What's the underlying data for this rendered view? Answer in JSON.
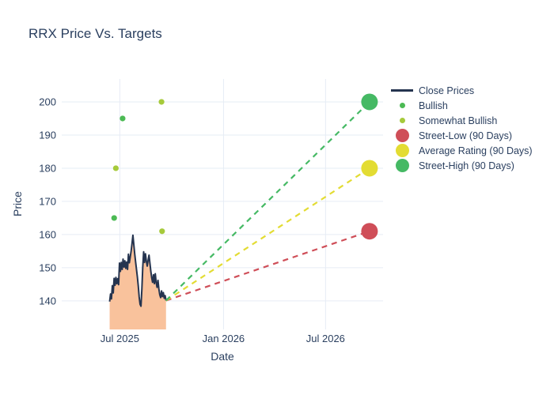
{
  "colors": {
    "text": "#2a3f5f",
    "grid": "#e6ecf5",
    "line": "#25344f",
    "fill": "#f9c29c",
    "bullish": "#4cba54",
    "somewhat": "#a6ca3b",
    "low": "#cf4e58",
    "avg": "#e3dc33",
    "high": "#45b964"
  },
  "legend": {
    "items": [
      {
        "label": "Close Prices",
        "color_key": "line",
        "swatch": "line"
      },
      {
        "label": "Bullish",
        "color_key": "bullish",
        "swatch": "dot-sm"
      },
      {
        "label": "Somewhat Bullish",
        "color_key": "somewhat",
        "swatch": "dot-sm"
      },
      {
        "label": "Street-Low (90 Days)",
        "color_key": "low",
        "swatch": "dot-lg"
      },
      {
        "label": "Average Rating (90 Days)",
        "color_key": "avg",
        "swatch": "dot-lg"
      },
      {
        "label": "Street-High (90 Days)",
        "color_key": "high",
        "swatch": "dot-lg"
      }
    ]
  },
  "chart_data": {
    "type": "line",
    "title": "RRX Price Vs. Targets",
    "xlabel": "Date",
    "ylabel": "Price",
    "legend_position": "right",
    "grid": true,
    "x_axis": {
      "range": [
        "2025-03-20",
        "2026-10-11"
      ],
      "ticks": [
        {
          "date": "2025-07-01",
          "label": "Jul 2025"
        },
        {
          "date": "2026-01-01",
          "label": "Jan 2026"
        },
        {
          "date": "2026-07-01",
          "label": "Jul 2026"
        }
      ]
    },
    "y_axis": {
      "range": [
        131.4,
        206.9
      ],
      "ticks": [
        140,
        150,
        160,
        170,
        180,
        190,
        200
      ]
    },
    "close_prices": {
      "name": "Close Prices",
      "start_date": "2025-06-13",
      "end_date": "2025-09-21",
      "prices": [
        139.8,
        142.1,
        140.6,
        144.6,
        142.4,
        146.8,
        144.7,
        147.1,
        145.2,
        146.7,
        144.9,
        151.4,
        148.9,
        151.6,
        149.5,
        152.6,
        150.2,
        152.1,
        149.8,
        151.7,
        149.5,
        154.1,
        151.5,
        153.2,
        155.0,
        157.3,
        159.8,
        157.0,
        154.2,
        151.8,
        149.5,
        147.2,
        144.5,
        141.2,
        139.0,
        138.4,
        143.5,
        150.2,
        154.8,
        151.6,
        154.2,
        152.0,
        150.5,
        152.3,
        153.8,
        151.4,
        149.0,
        147.0,
        145.6,
        147.9,
        145.2,
        148.2,
        145.5,
        144.1,
        146.2,
        143.6,
        141.9,
        141.0,
        143.0,
        141.3,
        142.5,
        140.8,
        141.6,
        140.1
      ],
      "last_close": {
        "date": "2025-09-21",
        "price": 140.1
      }
    },
    "ratings": {
      "bullish": [
        {
          "date": "2025-06-21",
          "price": 165
        },
        {
          "date": "2025-07-06",
          "price": 195
        }
      ],
      "somewhat_bullish": [
        {
          "date": "2025-06-24",
          "price": 180
        },
        {
          "date": "2025-09-13",
          "price": 200
        },
        {
          "date": "2025-09-14",
          "price": 161
        }
      ]
    },
    "targets": {
      "date": "2026-09-17",
      "street_low": 161,
      "average": 180,
      "street_high": 200
    }
  }
}
